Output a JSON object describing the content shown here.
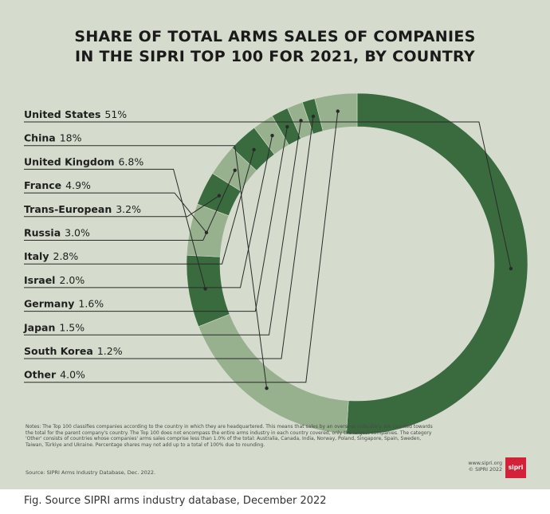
{
  "title": {
    "line1": "SHARE OF TOTAL ARMS SALES OF COMPANIES",
    "line2": "IN THE SIPRI TOP 100 FOR 2021, BY COUNTRY"
  },
  "chart_data": {
    "type": "pie",
    "donut": true,
    "unit": "%",
    "title": "SHARE OF TOTAL ARMS SALES OF COMPANIES IN THE SIPRI TOP 100 FOR 2021, BY COUNTRY",
    "legend_position": "left",
    "slices": [
      {
        "label": "United States",
        "value": 51,
        "display": "51%",
        "color": "#3a6b3f"
      },
      {
        "label": "China",
        "value": 18,
        "display": "18%",
        "color": "#97b08e"
      },
      {
        "label": "United Kingdom",
        "value": 6.8,
        "display": "6.8%",
        "color": "#3a6b3f"
      },
      {
        "label": "France",
        "value": 4.9,
        "display": "4.9%",
        "color": "#97b08e"
      },
      {
        "label": "Trans-European",
        "value": 3.2,
        "display": "3.2%",
        "color": "#3a6b3f"
      },
      {
        "label": "Russia",
        "value": 3.0,
        "display": "3.0%",
        "color": "#97b08e"
      },
      {
        "label": "Italy",
        "value": 2.8,
        "display": "2.8%",
        "color": "#3a6b3f"
      },
      {
        "label": "Israel",
        "value": 2.0,
        "display": "2.0%",
        "color": "#97b08e"
      },
      {
        "label": "Germany",
        "value": 1.6,
        "display": "1.6%",
        "color": "#3a6b3f"
      },
      {
        "label": "Japan",
        "value": 1.5,
        "display": "1.5%",
        "color": "#97b08e"
      },
      {
        "label": "South Korea",
        "value": 1.2,
        "display": "1.2%",
        "color": "#3a6b3f"
      },
      {
        "label": "Other",
        "value": 4.0,
        "display": "4.0%",
        "color": "#97b08e"
      }
    ]
  },
  "notes": "Notes: The Top 100 classifies companies according to the country in which they are headquartered. This means that sales by an overseas subsidiary are counted towards the total for the parent company's country. The Top 100 does not encompass the entire arms industry in each country covered, only the largest companies. The category 'Other' consists of countries whose companies' arms sales comprise less than 1.0% of the total: Australia, Canada, India, Norway, Poland, Singapore, Spain, Sweden, Taiwan, Türkiye and Ukraine. Percentage shares may not add up to a total of 100% due to rounding.",
  "source": "Source: SIPRI Arms Industry Database, Dec. 2022.",
  "credit": {
    "url": "www.sipri.org",
    "copyright": "© SIPRI 2022"
  },
  "logo_text": "sipri",
  "caption": "Fig. Source SIPRI arms industry database, December 2022",
  "colors": {
    "background": "#d5dccd",
    "dark_green": "#3a6b3f",
    "light_green": "#97b08e",
    "leader": "#2a2a2a",
    "logo_red": "#d4213a"
  }
}
